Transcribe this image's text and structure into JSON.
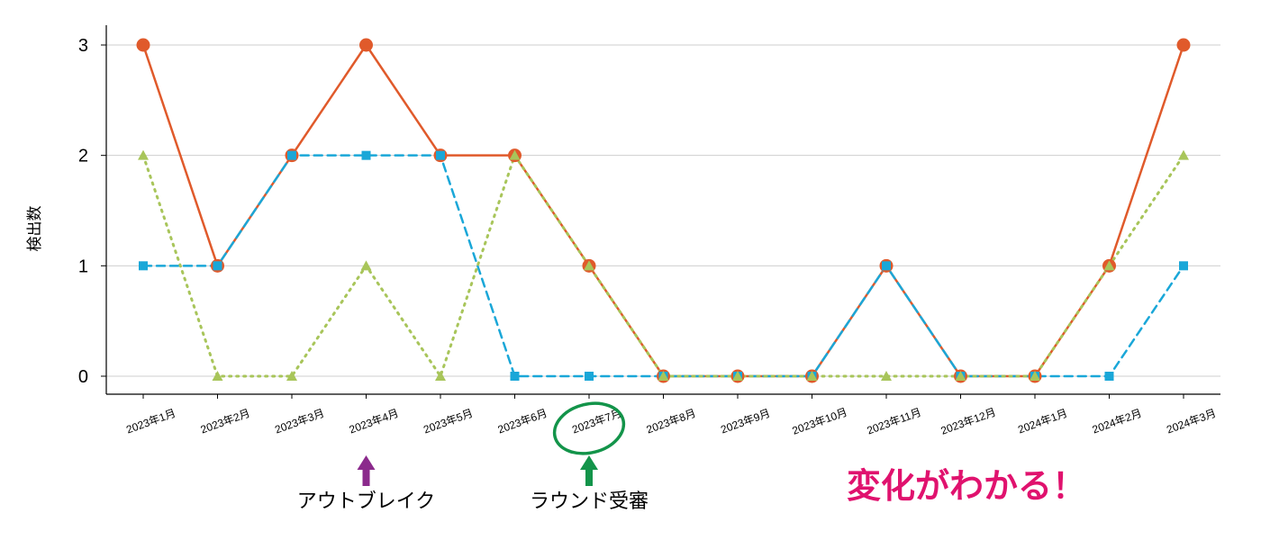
{
  "chart_data": {
    "type": "line",
    "ylabel": "検出数",
    "xlabel": "",
    "ylim": [
      0,
      3
    ],
    "yticks": [
      "0",
      "1",
      "2",
      "3"
    ],
    "grid": true,
    "categories": [
      "2023年1月",
      "2023年2月",
      "2023年3月",
      "2023年4月",
      "2023年5月",
      "2023年6月",
      "2023年7月",
      "2023年8月",
      "2023年9月",
      "2023年10月",
      "2023年11月",
      "2023年12月",
      "2024年1月",
      "2024年2月",
      "2024年3月"
    ],
    "series": [
      {
        "values": [
          3,
          1,
          2,
          3,
          2,
          2,
          1,
          0,
          0,
          0,
          1,
          0,
          0,
          1,
          3
        ],
        "color": "#e05a2b",
        "style": "solid",
        "marker": "circle"
      },
      {
        "values": [
          1,
          1,
          2,
          2,
          2,
          0,
          0,
          0,
          0,
          0,
          1,
          0,
          0,
          0,
          1
        ],
        "color": "#1aa7d8",
        "style": "dashed",
        "marker": "square"
      },
      {
        "values": [
          2,
          0,
          0,
          1,
          0,
          2,
          1,
          0,
          0,
          0,
          0,
          0,
          0,
          1,
          2
        ],
        "color": "#a8c55a",
        "style": "dotted",
        "marker": "triangle"
      }
    ],
    "annotations": [
      {
        "category_index": 3,
        "text": "アウトブレイク",
        "arrow_color": "#8b2a8c"
      },
      {
        "category_index": 6,
        "text": "ラウンド受審",
        "arrow_color": "#13944a",
        "highlight": "ellipse"
      }
    ]
  },
  "callout": {
    "text": "変化がわかる！",
    "color": "#e0126e"
  }
}
